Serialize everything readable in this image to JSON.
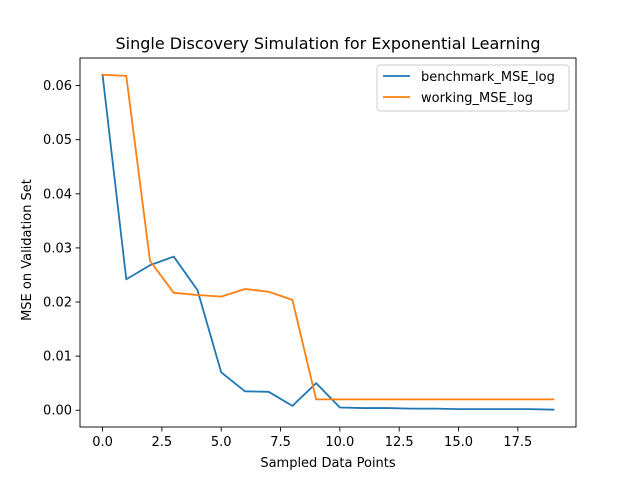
{
  "chart_data": {
    "type": "line",
    "title": "Single Discovery Simulation for Exponential Learning",
    "xlabel": "Sampled Data Points",
    "ylabel": "MSE on Validation Set",
    "xlim": [
      -0.95,
      19.95
    ],
    "ylim": [
      -0.0031,
      0.0651
    ],
    "xticks": [
      0,
      2.5,
      5,
      7.5,
      10,
      12.5,
      15,
      17.5
    ],
    "xtick_labels": [
      "0.0",
      "2.5",
      "5.0",
      "7.5",
      "10.0",
      "12.5",
      "15.0",
      "17.5"
    ],
    "yticks": [
      0,
      0.01,
      0.02,
      0.03,
      0.04,
      0.05,
      0.06
    ],
    "ytick_labels": [
      "0.00",
      "0.01",
      "0.02",
      "0.03",
      "0.04",
      "0.05",
      "0.06"
    ],
    "grid": false,
    "legend_position": "top-right",
    "x": [
      0,
      1,
      2,
      3,
      4,
      5,
      6,
      7,
      8,
      9,
      10,
      11,
      12,
      13,
      14,
      15,
      16,
      17,
      18,
      19
    ],
    "series": [
      {
        "name": "benchmark_MSE_log",
        "color": "#1f77b4",
        "values": [
          0.062,
          0.0242,
          0.0268,
          0.0284,
          0.0222,
          0.007,
          0.0035,
          0.0034,
          0.0008,
          0.005,
          0.0005,
          0.0004,
          0.0004,
          0.0003,
          0.0003,
          0.0002,
          0.0002,
          0.0002,
          0.0002,
          0.0001
        ]
      },
      {
        "name": "working_MSE_log",
        "color": "#ff7f0e",
        "values": [
          0.062,
          0.0618,
          0.0276,
          0.0217,
          0.0213,
          0.021,
          0.0224,
          0.0219,
          0.0204,
          0.002,
          0.002,
          0.002,
          0.002,
          0.002,
          0.002,
          0.002,
          0.002,
          0.002,
          0.002,
          0.002
        ]
      }
    ]
  }
}
